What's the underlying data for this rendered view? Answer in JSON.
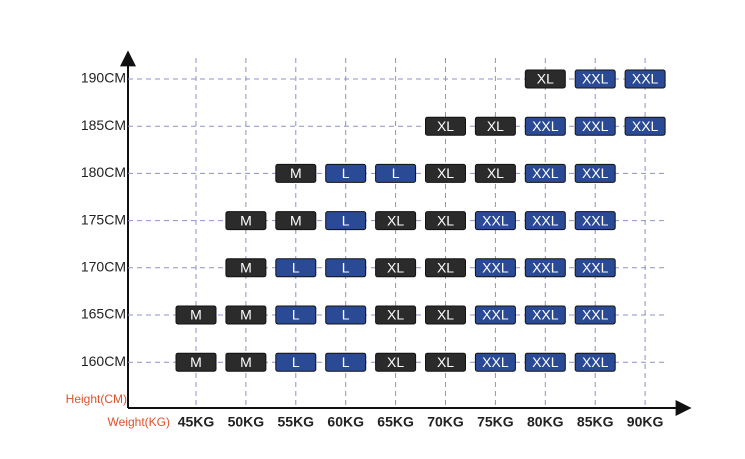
{
  "chart_data": {
    "type": "size-grid",
    "y_label": "Height(CM)",
    "x_label": "Weight(KG)",
    "rows": [
      "190CM",
      "185CM",
      "180CM",
      "175CM",
      "170CM",
      "165CM",
      "160CM"
    ],
    "columns": [
      "45KG",
      "50KG",
      "55KG",
      "60KG",
      "65KG",
      "70KG",
      "75KG",
      "80KG",
      "85KG",
      "90KG"
    ],
    "cells": [
      [
        null,
        null,
        null,
        null,
        null,
        null,
        null,
        "XL",
        "XXL",
        "XXL"
      ],
      [
        null,
        null,
        null,
        null,
        null,
        "XL",
        "XL",
        "XXL",
        "XXL",
        "XXL"
      ],
      [
        null,
        null,
        "M",
        "L",
        "L",
        "XL",
        "XL",
        "XXL",
        "XXL",
        null
      ],
      [
        null,
        "M",
        "M",
        "L",
        "XL",
        "XL",
        "XXL",
        "XXL",
        "XXL",
        null
      ],
      [
        null,
        "M",
        "L",
        "L",
        "XL",
        "XL",
        "XXL",
        "XXL",
        "XXL",
        null
      ],
      [
        "M",
        "M",
        "L",
        "L",
        "XL",
        "XL",
        "XXL",
        "XXL",
        "XXL",
        null
      ],
      [
        "M",
        "M",
        "L",
        "L",
        "XL",
        "XL",
        "XXL",
        "XXL",
        "XXL",
        null
      ]
    ],
    "cell_colors": {
      "M": "#2b2b2b",
      "L": "#2b4a96",
      "XL": "#2b2b2b",
      "XXL": "#2b4a96"
    },
    "axis_label_color": "#e0502a",
    "grid": true
  }
}
